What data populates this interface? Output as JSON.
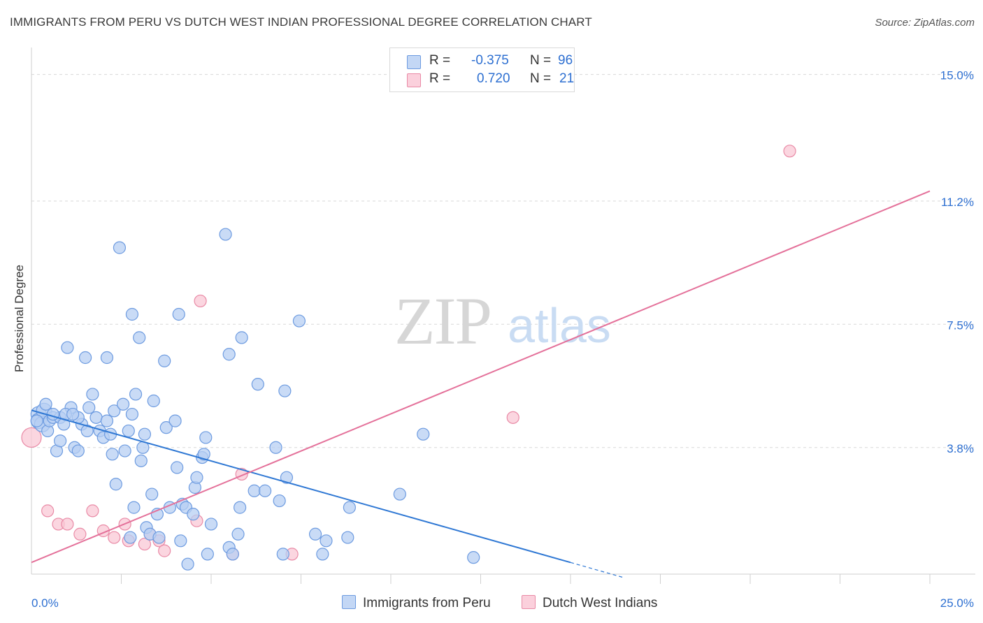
{
  "title": "IMMIGRANTS FROM PERU VS DUTCH WEST INDIAN PROFESSIONAL DEGREE CORRELATION CHART",
  "source": "Source: ZipAtlas.com",
  "watermark": {
    "zip": "ZIP",
    "atlas": "atlas"
  },
  "legend": {
    "rows": [
      {
        "r_label": "R =",
        "r_value": "-0.375",
        "n_label": "N =",
        "n_value": "96"
      },
      {
        "r_label": "R =",
        "r_value": "0.720",
        "n_label": "N =",
        "n_value": "21"
      }
    ]
  },
  "bottom_legend": {
    "series1": "Immigrants from Peru",
    "series2": "Dutch West Indians"
  },
  "colors": {
    "blue_fill": "#b7cff3",
    "blue_stroke": "#6d9be0",
    "blue_line": "#2f78d4",
    "pink_fill": "#f9c8d6",
    "pink_stroke": "#e98aa6",
    "pink_line": "#e4719a",
    "axis_text": "#2d6fd1",
    "grid": "#d8d8d8"
  },
  "chart_data": {
    "type": "scatter",
    "title": "IMMIGRANTS FROM PERU VS DUTCH WEST INDIAN PROFESSIONAL DEGREE CORRELATION CHART",
    "xlabel": "",
    "ylabel": "Professional Degree",
    "xlim": [
      0,
      25
    ],
    "ylim": [
      0,
      15.6
    ],
    "x_tick_labels": [
      {
        "value": 0,
        "label": "0.0%"
      },
      {
        "value": 25,
        "label": "25.0%"
      }
    ],
    "y_tick_labels": [
      {
        "value": 3.8,
        "label": "3.8%"
      },
      {
        "value": 7.5,
        "label": "7.5%"
      },
      {
        "value": 11.2,
        "label": "11.2%"
      },
      {
        "value": 15.0,
        "label": "15.0%"
      }
    ],
    "series": [
      {
        "name": "Immigrants from Peru",
        "color": "#6d9be0",
        "points": [
          [
            0.2,
            4.8
          ],
          [
            0.2,
            4.6
          ],
          [
            0.3,
            4.5
          ],
          [
            0.35,
            4.9
          ],
          [
            0.4,
            5.1
          ],
          [
            0.45,
            4.3
          ],
          [
            0.5,
            4.6
          ],
          [
            0.6,
            4.7
          ],
          [
            0.7,
            3.7
          ],
          [
            0.8,
            4.7
          ],
          [
            0.8,
            4.0
          ],
          [
            0.9,
            4.5
          ],
          [
            1.0,
            6.8
          ],
          [
            1.1,
            5.0
          ],
          [
            1.2,
            3.8
          ],
          [
            1.3,
            3.7
          ],
          [
            1.4,
            4.5
          ],
          [
            1.5,
            6.5
          ],
          [
            1.55,
            4.3
          ],
          [
            1.6,
            5.0
          ],
          [
            1.7,
            5.4
          ],
          [
            1.8,
            4.7
          ],
          [
            1.9,
            4.3
          ],
          [
            2.0,
            4.1
          ],
          [
            2.1,
            4.6
          ],
          [
            2.1,
            6.5
          ],
          [
            2.2,
            4.2
          ],
          [
            2.25,
            3.6
          ],
          [
            2.3,
            4.9
          ],
          [
            2.35,
            2.7
          ],
          [
            2.45,
            9.8
          ],
          [
            2.55,
            5.1
          ],
          [
            2.6,
            3.7
          ],
          [
            2.7,
            4.3
          ],
          [
            2.75,
            1.1
          ],
          [
            2.8,
            7.8
          ],
          [
            2.85,
            2.0
          ],
          [
            2.9,
            5.4
          ],
          [
            3.0,
            7.1
          ],
          [
            3.05,
            3.4
          ],
          [
            3.1,
            3.8
          ],
          [
            3.15,
            4.2
          ],
          [
            3.2,
            1.4
          ],
          [
            3.3,
            1.2
          ],
          [
            3.35,
            2.4
          ],
          [
            3.4,
            5.2
          ],
          [
            3.5,
            1.8
          ],
          [
            3.55,
            1.1
          ],
          [
            3.7,
            6.4
          ],
          [
            3.75,
            4.4
          ],
          [
            3.85,
            2.0
          ],
          [
            4.05,
            3.2
          ],
          [
            4.1,
            7.8
          ],
          [
            4.15,
            1.0
          ],
          [
            4.2,
            2.1
          ],
          [
            4.3,
            2.0
          ],
          [
            4.35,
            0.3
          ],
          [
            4.5,
            1.8
          ],
          [
            4.55,
            2.6
          ],
          [
            4.6,
            2.9
          ],
          [
            4.75,
            3.5
          ],
          [
            4.8,
            3.6
          ],
          [
            4.85,
            4.1
          ],
          [
            4.9,
            0.6
          ],
          [
            5.0,
            1.5
          ],
          [
            5.4,
            10.2
          ],
          [
            5.5,
            6.6
          ],
          [
            5.5,
            0.8
          ],
          [
            5.6,
            0.6
          ],
          [
            5.75,
            1.2
          ],
          [
            5.8,
            2.0
          ],
          [
            5.85,
            7.1
          ],
          [
            6.2,
            2.5
          ],
          [
            6.3,
            5.7
          ],
          [
            6.5,
            2.5
          ],
          [
            6.8,
            3.8
          ],
          [
            6.9,
            2.2
          ],
          [
            7.0,
            0.6
          ],
          [
            7.05,
            5.5
          ],
          [
            7.1,
            2.9
          ],
          [
            7.45,
            7.6
          ],
          [
            7.9,
            1.2
          ],
          [
            8.1,
            0.6
          ],
          [
            8.2,
            1.0
          ],
          [
            8.8,
            1.1
          ],
          [
            8.85,
            2.0
          ],
          [
            10.25,
            2.4
          ],
          [
            10.9,
            4.2
          ],
          [
            12.3,
            0.5
          ],
          [
            0.15,
            4.6
          ],
          [
            1.3,
            4.7
          ],
          [
            0.6,
            4.8
          ],
          [
            0.95,
            4.8
          ],
          [
            1.15,
            4.8
          ],
          [
            2.8,
            4.8
          ],
          [
            4.0,
            4.6
          ]
        ]
      },
      {
        "name": "Dutch West Indians",
        "color": "#e98aa6",
        "points": [
          [
            0.0,
            4.1
          ],
          [
            0.45,
            1.9
          ],
          [
            0.75,
            1.5
          ],
          [
            1.0,
            1.5
          ],
          [
            1.35,
            1.2
          ],
          [
            1.7,
            1.9
          ],
          [
            2.0,
            1.3
          ],
          [
            2.3,
            1.1
          ],
          [
            2.6,
            1.5
          ],
          [
            2.7,
            1.0
          ],
          [
            3.15,
            0.9
          ],
          [
            3.3,
            1.2
          ],
          [
            3.55,
            1.0
          ],
          [
            3.7,
            0.7
          ],
          [
            4.6,
            1.6
          ],
          [
            4.7,
            8.2
          ],
          [
            5.6,
            0.6
          ],
          [
            5.85,
            3.0
          ],
          [
            7.25,
            0.6
          ],
          [
            13.4,
            4.7
          ],
          [
            21.1,
            12.7
          ]
        ]
      }
    ],
    "trendlines": [
      {
        "series": "Immigrants from Peru",
        "x": [
          0,
          15
        ],
        "y": [
          4.92,
          0.35
        ],
        "dashed_extension": {
          "x": [
            15,
            16.5
          ],
          "y": [
            0.35,
            -0.11
          ]
        }
      },
      {
        "series": "Dutch West Indians",
        "x": [
          0,
          25
        ],
        "y": [
          0.35,
          11.5
        ]
      }
    ],
    "grid": true
  }
}
